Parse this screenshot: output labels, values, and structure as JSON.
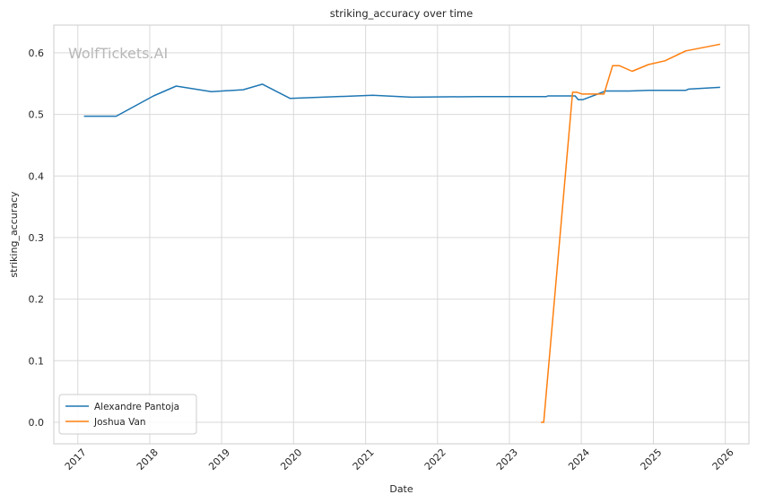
{
  "chart_data": {
    "type": "line",
    "title": "striking_accuracy over time",
    "xlabel": "Date",
    "ylabel": "striking_accuracy",
    "watermark": "WolfTickets.AI",
    "xlim": [
      "2016-09-01",
      "2026-05-01"
    ],
    "ylim": [
      -0.035,
      0.645
    ],
    "x_ticks": [
      "2017",
      "2018",
      "2019",
      "2020",
      "2021",
      "2022",
      "2023",
      "2024",
      "2025",
      "2026"
    ],
    "y_ticks": [
      "0.0",
      "0.1",
      "0.2",
      "0.3",
      "0.4",
      "0.5",
      "0.6"
    ],
    "grid": true,
    "legend_position": "lower-left",
    "series": [
      {
        "name": "Alexandre Pantoja",
        "color": "#1f77b4",
        "x": [
          "2017-02-01",
          "2017-07-15",
          "2018-01-20",
          "2018-05-15",
          "2018-11-10",
          "2019-04-20",
          "2019-07-27",
          "2019-12-14",
          "2021-02-06",
          "2021-08-21",
          "2022-07-30",
          "2023-07-08",
          "2023-07-15",
          "2023-12-01",
          "2023-12-16",
          "2024-01-10",
          "2024-05-04",
          "2024-09-01",
          "2024-12-07",
          "2025-06-14",
          "2025-06-28",
          "2025-12-06"
        ],
        "values": [
          0.497,
          0.497,
          0.53,
          0.546,
          0.537,
          0.54,
          0.549,
          0.526,
          0.531,
          0.528,
          0.529,
          0.529,
          0.53,
          0.53,
          0.524,
          0.524,
          0.538,
          0.538,
          0.539,
          0.539,
          0.541,
          0.544
        ]
      },
      {
        "name": "Joshua Van",
        "color": "#ff7f0e",
        "x": [
          "2023-06-10",
          "2023-06-24",
          "2023-11-18",
          "2023-12-10",
          "2024-01-05",
          "2024-04-10",
          "2024-04-25",
          "2024-06-08",
          "2024-07-13",
          "2024-09-15",
          "2024-12-07",
          "2025-03-01",
          "2025-06-14",
          "2025-12-06"
        ],
        "values": [
          0.0,
          0.0,
          0.536,
          0.536,
          0.533,
          0.533,
          0.533,
          0.579,
          0.579,
          0.57,
          0.581,
          0.587,
          0.603,
          0.614
        ]
      }
    ]
  }
}
